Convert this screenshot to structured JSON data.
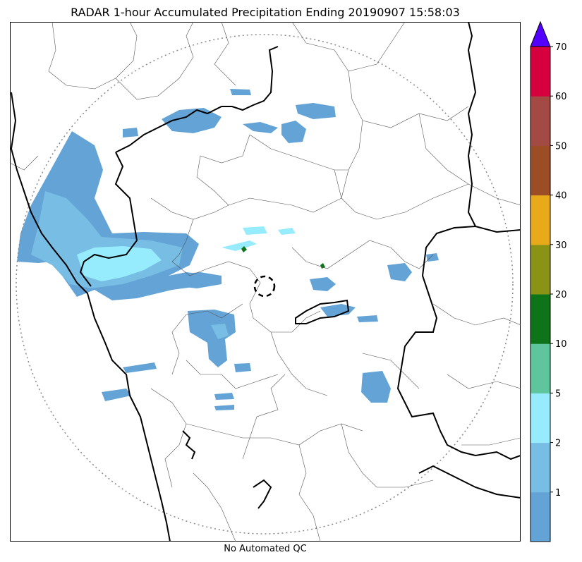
{
  "title": "RADAR 1-hour Accumulated Precipitation Ending 20190907 15:58:03",
  "footer": "No Automated QC",
  "colorbar": {
    "labels": [
      "1",
      "2",
      "5",
      "10",
      "20",
      "30",
      "40",
      "50",
      "60",
      "70"
    ],
    "colors": [
      "#63a3d6",
      "#78bde3",
      "#96ecfd",
      "#5ec59c",
      "#0e741a",
      "#8b9316",
      "#e8aa1b",
      "#9c4d26",
      "#a44a44",
      "#d6003e"
    ],
    "extend_color": "#5200ff"
  },
  "map": {
    "range_ring_color": "#888888",
    "radar_site": "radar-site-marker",
    "colors": {
      "rain_light": "#63a3d6",
      "rain_mid": "#78bde3",
      "rain_heavy": "#96ecfd",
      "rain_core": "#5ec59c",
      "coast": "#000000",
      "district": "#555555"
    }
  }
}
